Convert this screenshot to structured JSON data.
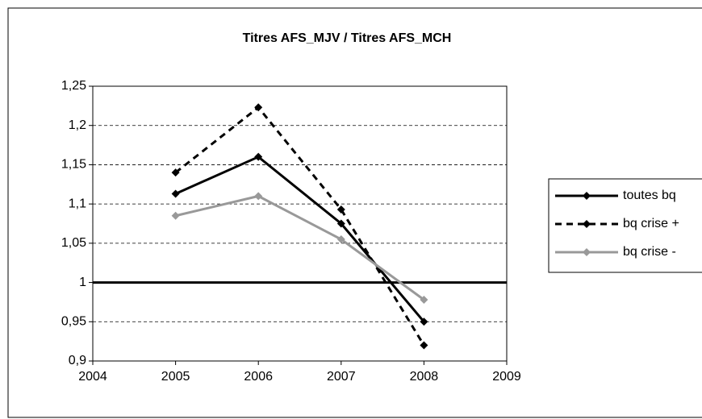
{
  "chart_data": {
    "type": "line",
    "title": "Titres AFS_MJV / Titres AFS_MCH",
    "x": [
      2005,
      2006,
      2007,
      2008
    ],
    "series": [
      {
        "name": "toutes bq",
        "color": "#000000",
        "dash": false,
        "values": [
          1.113,
          1.16,
          1.075,
          0.95
        ]
      },
      {
        "name": "bq crise +",
        "color": "#000000",
        "dash": true,
        "values": [
          1.14,
          1.223,
          1.093,
          0.92
        ]
      },
      {
        "name": "bq crise -",
        "color": "#999999",
        "dash": false,
        "values": [
          1.085,
          1.11,
          1.055,
          0.978
        ]
      }
    ],
    "reference_line": 1,
    "xlim": [
      2004,
      2009
    ],
    "xticks": [
      2004,
      2005,
      2006,
      2007,
      2008,
      2009
    ],
    "ylim": [
      0.9,
      1.25
    ],
    "yticks": [
      {
        "value": 0.9,
        "label": "0,9"
      },
      {
        "value": 0.95,
        "label": "0,95"
      },
      1,
      {
        "value": 1.05,
        "label": "1,05"
      },
      {
        "value": 1.1,
        "label": "1,1"
      },
      {
        "value": 1.15,
        "label": "1,15"
      },
      {
        "value": 1.2,
        "label": "1,2"
      },
      {
        "value": 1.25,
        "label": "1,25"
      }
    ],
    "grid": true
  }
}
